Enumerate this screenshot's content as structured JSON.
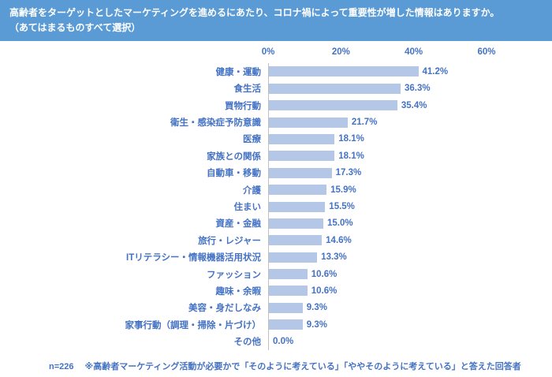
{
  "header": {
    "title_line1": "高齢者をターゲットとしたマーケティングを進めるにあたり、コロナ禍によって重要性が増した情報はありますか。",
    "title_line2": "（あてはまるものすべて選択）"
  },
  "chart_data": {
    "type": "bar",
    "orientation": "horizontal",
    "categories": [
      "健康・運動",
      "食生活",
      "買物行動",
      "衛生・感染症予防意識",
      "医療",
      "家族との関係",
      "自動車・移動",
      "介護",
      "住まい",
      "資産・金融",
      "旅行・レジャー",
      "ITリテラシー・情報機器活用状況",
      "ファッション",
      "趣味・余暇",
      "美容・身だしなみ",
      "家事行動（調理・掃除・片づけ）",
      "その他"
    ],
    "values": [
      41.2,
      36.3,
      35.4,
      21.7,
      18.1,
      18.1,
      17.3,
      15.9,
      15.5,
      15.0,
      14.6,
      13.3,
      10.6,
      10.6,
      9.3,
      9.3,
      0.0
    ],
    "value_labels": [
      "41.2%",
      "36.3%",
      "35.4%",
      "21.7%",
      "18.1%",
      "18.1%",
      "17.3%",
      "15.9%",
      "15.5%",
      "15.0%",
      "14.6%",
      "13.3%",
      "10.6%",
      "10.6%",
      "9.3%",
      "9.3%",
      "0.0%"
    ],
    "x_axis": {
      "ticks": [
        "0%",
        "20%",
        "40%",
        "60%"
      ],
      "max": 60
    },
    "grid": "off",
    "legend": "none",
    "colors": {
      "header_bg": "#5b9bd5",
      "bar": "#b4c7e7",
      "text": "#4472c4"
    }
  },
  "footer": {
    "n_label": "n=226",
    "note": "※高齢者マーケティング活動が必要かで「そのように考えている」「ややそのように考えている」と答えた回答者"
  }
}
